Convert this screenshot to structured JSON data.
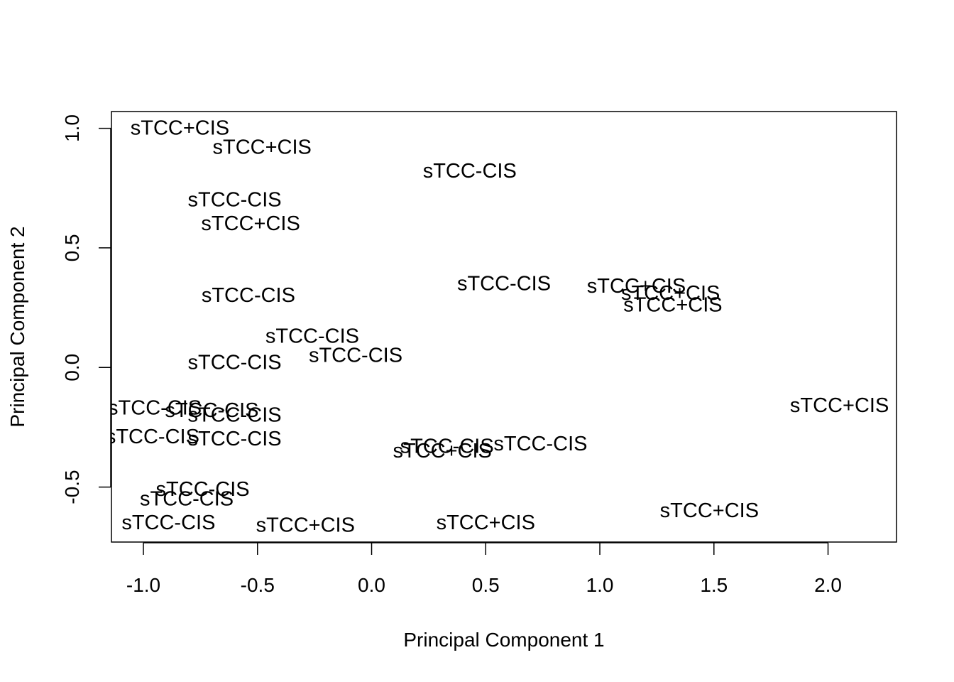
{
  "chart_data": {
    "type": "scatter",
    "title": "",
    "xlabel": "Principal Component 1",
    "ylabel": "Principal Component 2",
    "xlim": [
      -1.14,
      2.3
    ],
    "ylim": [
      -0.73,
      1.07
    ],
    "x_ticks": [
      -1.0,
      -0.5,
      0.0,
      0.5,
      1.0,
      1.5,
      2.0
    ],
    "x_tick_labels": [
      "-1.0",
      "-0.5",
      "0.0",
      "0.5",
      "1.0",
      "1.5",
      "2.0"
    ],
    "y_ticks": [
      -0.5,
      0.0,
      0.5,
      1.0
    ],
    "y_tick_labels": [
      "-0.5",
      "0.0",
      "0.5",
      "1.0"
    ],
    "grid": false,
    "points": [
      {
        "x": -0.84,
        "y": 1.0,
        "label": "sTCC+CIS"
      },
      {
        "x": -0.48,
        "y": 0.92,
        "label": "sTCC+CIS"
      },
      {
        "x": 0.43,
        "y": 0.82,
        "label": "sTCC-CIS"
      },
      {
        "x": -0.6,
        "y": 0.7,
        "label": "sTCC-CIS"
      },
      {
        "x": -0.53,
        "y": 0.6,
        "label": "sTCC+CIS"
      },
      {
        "x": -0.54,
        "y": 0.3,
        "label": "sTCC-CIS"
      },
      {
        "x": 0.58,
        "y": 0.35,
        "label": "sTCC-CIS"
      },
      {
        "x": 1.16,
        "y": 0.34,
        "label": "sTCC+CIS"
      },
      {
        "x": 1.31,
        "y": 0.31,
        "label": "sTCC+CIS"
      },
      {
        "x": 1.32,
        "y": 0.26,
        "label": "sTCC+CIS"
      },
      {
        "x": -0.26,
        "y": 0.13,
        "label": "sTCC-CIS"
      },
      {
        "x": -0.07,
        "y": 0.05,
        "label": "sTCC-CIS"
      },
      {
        "x": -0.6,
        "y": 0.02,
        "label": "sTCC-CIS"
      },
      {
        "x": -0.95,
        "y": -0.17,
        "label": "sTCC-CIS"
      },
      {
        "x": -0.7,
        "y": -0.18,
        "label": "sTCC-CIS"
      },
      {
        "x": -0.6,
        "y": -0.2,
        "label": "sTCC-CIS"
      },
      {
        "x": 2.05,
        "y": -0.16,
        "label": "sTCC+CIS"
      },
      {
        "x": -0.96,
        "y": -0.29,
        "label": "sTCC-CIS"
      },
      {
        "x": -0.6,
        "y": -0.3,
        "label": "sTCC-CIS"
      },
      {
        "x": 0.33,
        "y": -0.33,
        "label": "sTCC-CIS"
      },
      {
        "x": 0.31,
        "y": -0.35,
        "label": "sTCC+CIS"
      },
      {
        "x": 0.74,
        "y": -0.32,
        "label": "sTCC-CIS"
      },
      {
        "x": -0.74,
        "y": -0.51,
        "label": "sTCC-CIS"
      },
      {
        "x": -0.81,
        "y": -0.55,
        "label": "sTCC-CIS"
      },
      {
        "x": -0.89,
        "y": -0.65,
        "label": "sTCC-CIS"
      },
      {
        "x": -0.29,
        "y": -0.66,
        "label": "sTCC+CIS"
      },
      {
        "x": 0.5,
        "y": -0.65,
        "label": "sTCC+CIS"
      },
      {
        "x": 1.48,
        "y": -0.6,
        "label": "sTCC+CIS"
      }
    ]
  }
}
